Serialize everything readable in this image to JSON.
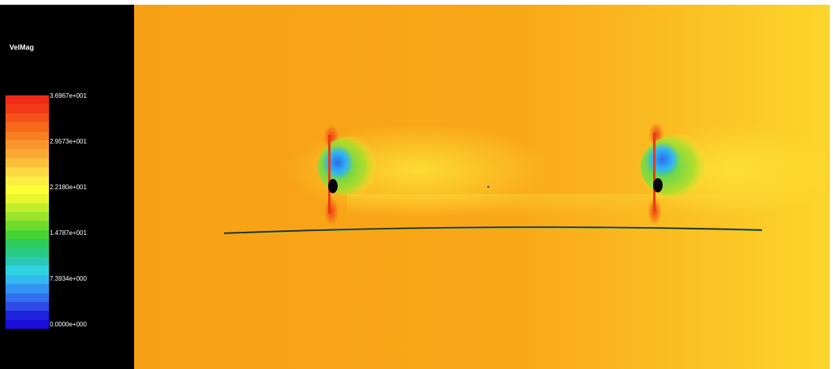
{
  "legend": {
    "title": "VelMag",
    "tick_labels": [
      "3.6967e+001",
      "2.9573e+001",
      "2.2180e+001",
      "1.4787e+001",
      "7.3934e+000",
      "0.0000e+000"
    ],
    "colorbar_colors": [
      "#ef2a16",
      "#f23a16",
      "#f55219",
      "#f6691c",
      "#f77f21",
      "#f8952a",
      "#f9a832",
      "#fac03c",
      "#fcd944",
      "#fdee42",
      "#ffff36",
      "#e7f52c",
      "#c3ee2a",
      "#99e42b",
      "#6fdb2c",
      "#45d334",
      "#2ccc5a",
      "#28ca86",
      "#2ac7b4",
      "#2fd3e0",
      "#32b9f0",
      "#3395f2",
      "#3270ef",
      "#2f4ce9",
      "#1f22dd",
      "#1a0ed8"
    ]
  },
  "colors": {
    "background_field": "#f9a417",
    "legend_panel": "#000000"
  }
}
